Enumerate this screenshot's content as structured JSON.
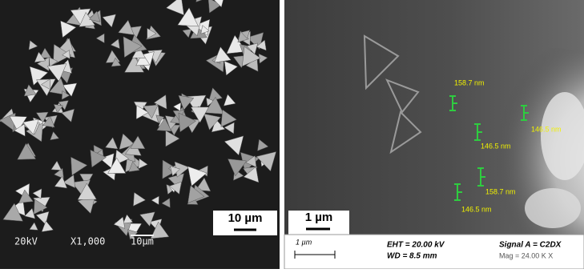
{
  "left_panel": {
    "scale_box": "10 µm",
    "footer": {
      "voltage": "20kV",
      "magnification": "X1,000",
      "scale": "10µm"
    }
  },
  "right_panel": {
    "scale_box": "1 µm",
    "measurements": [
      "158.7 nm",
      "146.5 nm",
      "146.5 nm",
      "158.7 nm",
      "146.5 nm"
    ],
    "info_bar": {
      "scale": "1 µm",
      "eht": "EHT = 20.00 kV",
      "wd": "WD = 8.5 mm",
      "signal": "Signal A = C2DX",
      "mag": "Mag = 24.00 K X"
    }
  }
}
